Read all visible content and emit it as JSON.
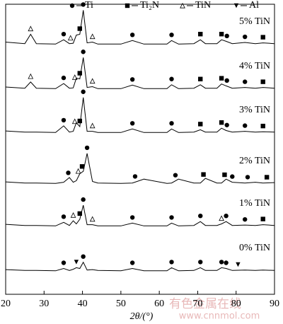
{
  "chart_data": {
    "type": "line",
    "xlabel": "2θ/(°)",
    "xlim": [
      20,
      90
    ],
    "xticks": [
      20,
      30,
      40,
      50,
      60,
      70,
      80,
      90
    ],
    "phases": [
      {
        "name": "Ti",
        "symbol": "circle"
      },
      {
        "name": "Ti₂N",
        "symbol": "square"
      },
      {
        "name": "TiN",
        "symbol": "triangle-open"
      },
      {
        "name": "Al",
        "symbol": "triangle-down"
      }
    ],
    "x": [
      20,
      25,
      26.5,
      28,
      33,
      35.1,
      36.6,
      37.6,
      38.4,
      39.3,
      40.2,
      41.2,
      42.6,
      44,
      50,
      53,
      56,
      62,
      63.2,
      65,
      69,
      70.7,
      72,
      75,
      76.2,
      77.4,
      79,
      82.3,
      85,
      87,
      90
    ],
    "series": [
      {
        "name": "5% TiN",
        "color": "#000000",
        "values": [
          10,
          6,
          30,
          6,
          5,
          16,
          6,
          7,
          28,
          30,
          92,
          8,
          10,
          5,
          5,
          14,
          5,
          5,
          14,
          5,
          6,
          16,
          6,
          6,
          16,
          12,
          6,
          9,
          6,
          8,
          6
        ],
        "markers": [
          {
            "phase": 2,
            "x": 26.5
          },
          {
            "phase": 0,
            "x": 35.1
          },
          {
            "phase": 2,
            "x": 36.9
          },
          {
            "phase": 1,
            "x": 39.3
          },
          {
            "phase": 0,
            "x": 40.2
          },
          {
            "phase": 2,
            "x": 42.6
          },
          {
            "phase": 0,
            "x": 53
          },
          {
            "phase": 0,
            "x": 63.2
          },
          {
            "phase": 1,
            "x": 70.7
          },
          {
            "phase": 1,
            "x": 76.2
          },
          {
            "phase": 0,
            "x": 77.6
          },
          {
            "phase": 0,
            "x": 82.3
          },
          {
            "phase": 1,
            "x": 87
          }
        ]
      },
      {
        "name": "4% TiN",
        "color": "#000000",
        "values": [
          9,
          6,
          22,
          6,
          5,
          18,
          6,
          7,
          32,
          30,
          85,
          8,
          10,
          5,
          5,
          14,
          5,
          5,
          15,
          5,
          6,
          15,
          6,
          6,
          17,
          12,
          6,
          8,
          6,
          8,
          6
        ],
        "markers": [
          {
            "phase": 2,
            "x": 26.5
          },
          {
            "phase": 0,
            "x": 35.1
          },
          {
            "phase": 2,
            "x": 38
          },
          {
            "phase": 1,
            "x": 39.3
          },
          {
            "phase": 0,
            "x": 40.2
          },
          {
            "phase": 2,
            "x": 42.6
          },
          {
            "phase": 0,
            "x": 53
          },
          {
            "phase": 0,
            "x": 63.2
          },
          {
            "phase": 1,
            "x": 70.7
          },
          {
            "phase": 1,
            "x": 76.2
          },
          {
            "phase": 0,
            "x": 77.6
          },
          {
            "phase": 0,
            "x": 82.3
          },
          {
            "phase": 1,
            "x": 87
          }
        ]
      },
      {
        "name": "3% TiN",
        "color": "#000000",
        "values": [
          9,
          6,
          6,
          6,
          5,
          22,
          6,
          8,
          30,
          20,
          95,
          8,
          8,
          5,
          5,
          14,
          5,
          5,
          14,
          5,
          6,
          12,
          6,
          6,
          16,
          10,
          6,
          8,
          6,
          7,
          6
        ],
        "markers": [
          {
            "phase": 0,
            "x": 35.1
          },
          {
            "phase": 2,
            "x": 38
          },
          {
            "phase": 1,
            "x": 39.3
          },
          {
            "phase": 0,
            "x": 40.2
          },
          {
            "phase": 2,
            "x": 42.6
          },
          {
            "phase": 0,
            "x": 53
          },
          {
            "phase": 0,
            "x": 63.2
          },
          {
            "phase": 1,
            "x": 70.7
          },
          {
            "phase": 1,
            "x": 76.2
          },
          {
            "phase": 0,
            "x": 77.6
          },
          {
            "phase": 0,
            "x": 82.3
          },
          {
            "phase": 1,
            "x": 87
          }
        ]
      },
      {
        "name": "2% TiN",
        "color": "#000000",
        "values": [
          9,
          6,
          6,
          6,
          5,
          8,
          20,
          8,
          12,
          30,
          36,
          82,
          10,
          6,
          5,
          6,
          16,
          5,
          6,
          16,
          6,
          6,
          18,
          6,
          6,
          16,
          8,
          6,
          8,
          6,
          7
        ],
        "markers": [
          {
            "phase": 0,
            "x": 36.3
          },
          {
            "phase": 2,
            "x": 38.9
          },
          {
            "phase": 1,
            "x": 39.9
          },
          {
            "phase": 0,
            "x": 41.2
          },
          {
            "phase": 0,
            "x": 53.7
          },
          {
            "phase": 0,
            "x": 64.2
          },
          {
            "phase": 1,
            "x": 71.5
          },
          {
            "phase": 1,
            "x": 77
          },
          {
            "phase": 0,
            "x": 79
          },
          {
            "phase": 0,
            "x": 83
          },
          {
            "phase": 1,
            "x": 88
          }
        ]
      },
      {
        "name": "1% TiN",
        "color": "#000000",
        "values": [
          9,
          6,
          6,
          6,
          5,
          14,
          6,
          18,
          10,
          22,
          58,
          8,
          8,
          5,
          5,
          12,
          5,
          5,
          12,
          5,
          6,
          16,
          6,
          6,
          10,
          16,
          6,
          7,
          6,
          8,
          6
        ],
        "markers": [
          {
            "phase": 0,
            "x": 35.1
          },
          {
            "phase": 2,
            "x": 37.6
          },
          {
            "phase": 1,
            "x": 39.3
          },
          {
            "phase": 0,
            "x": 40.2
          },
          {
            "phase": 2,
            "x": 42.6
          },
          {
            "phase": 0,
            "x": 53
          },
          {
            "phase": 0,
            "x": 63.2
          },
          {
            "phase": 0,
            "x": 70.7
          },
          {
            "phase": 2,
            "x": 76.2
          },
          {
            "phase": 0,
            "x": 77.4
          },
          {
            "phase": 0,
            "x": 82.3
          },
          {
            "phase": 1,
            "x": 87
          }
        ]
      },
      {
        "name": "0% TiN",
        "color": "#000000",
        "values": [
          7,
          5,
          5,
          5,
          4,
          10,
          5,
          8,
          12,
          10,
          26,
          6,
          7,
          5,
          4,
          10,
          4,
          4,
          12,
          4,
          5,
          12,
          5,
          5,
          12,
          10,
          5,
          6,
          5,
          6,
          5
        ],
        "markers": [
          {
            "phase": 0,
            "x": 35.1
          },
          {
            "phase": 3,
            "x": 38.4
          },
          {
            "phase": 0,
            "x": 40.2
          },
          {
            "phase": 0,
            "x": 53
          },
          {
            "phase": 0,
            "x": 63.2
          },
          {
            "phase": 0,
            "x": 70.7
          },
          {
            "phase": 0,
            "x": 76.2
          },
          {
            "phase": 0,
            "x": 77.4
          },
          {
            "phase": 3,
            "x": 80.5
          }
        ]
      }
    ],
    "watermark": [
      "有色金属在线",
      "www.cnnmol.com"
    ]
  }
}
